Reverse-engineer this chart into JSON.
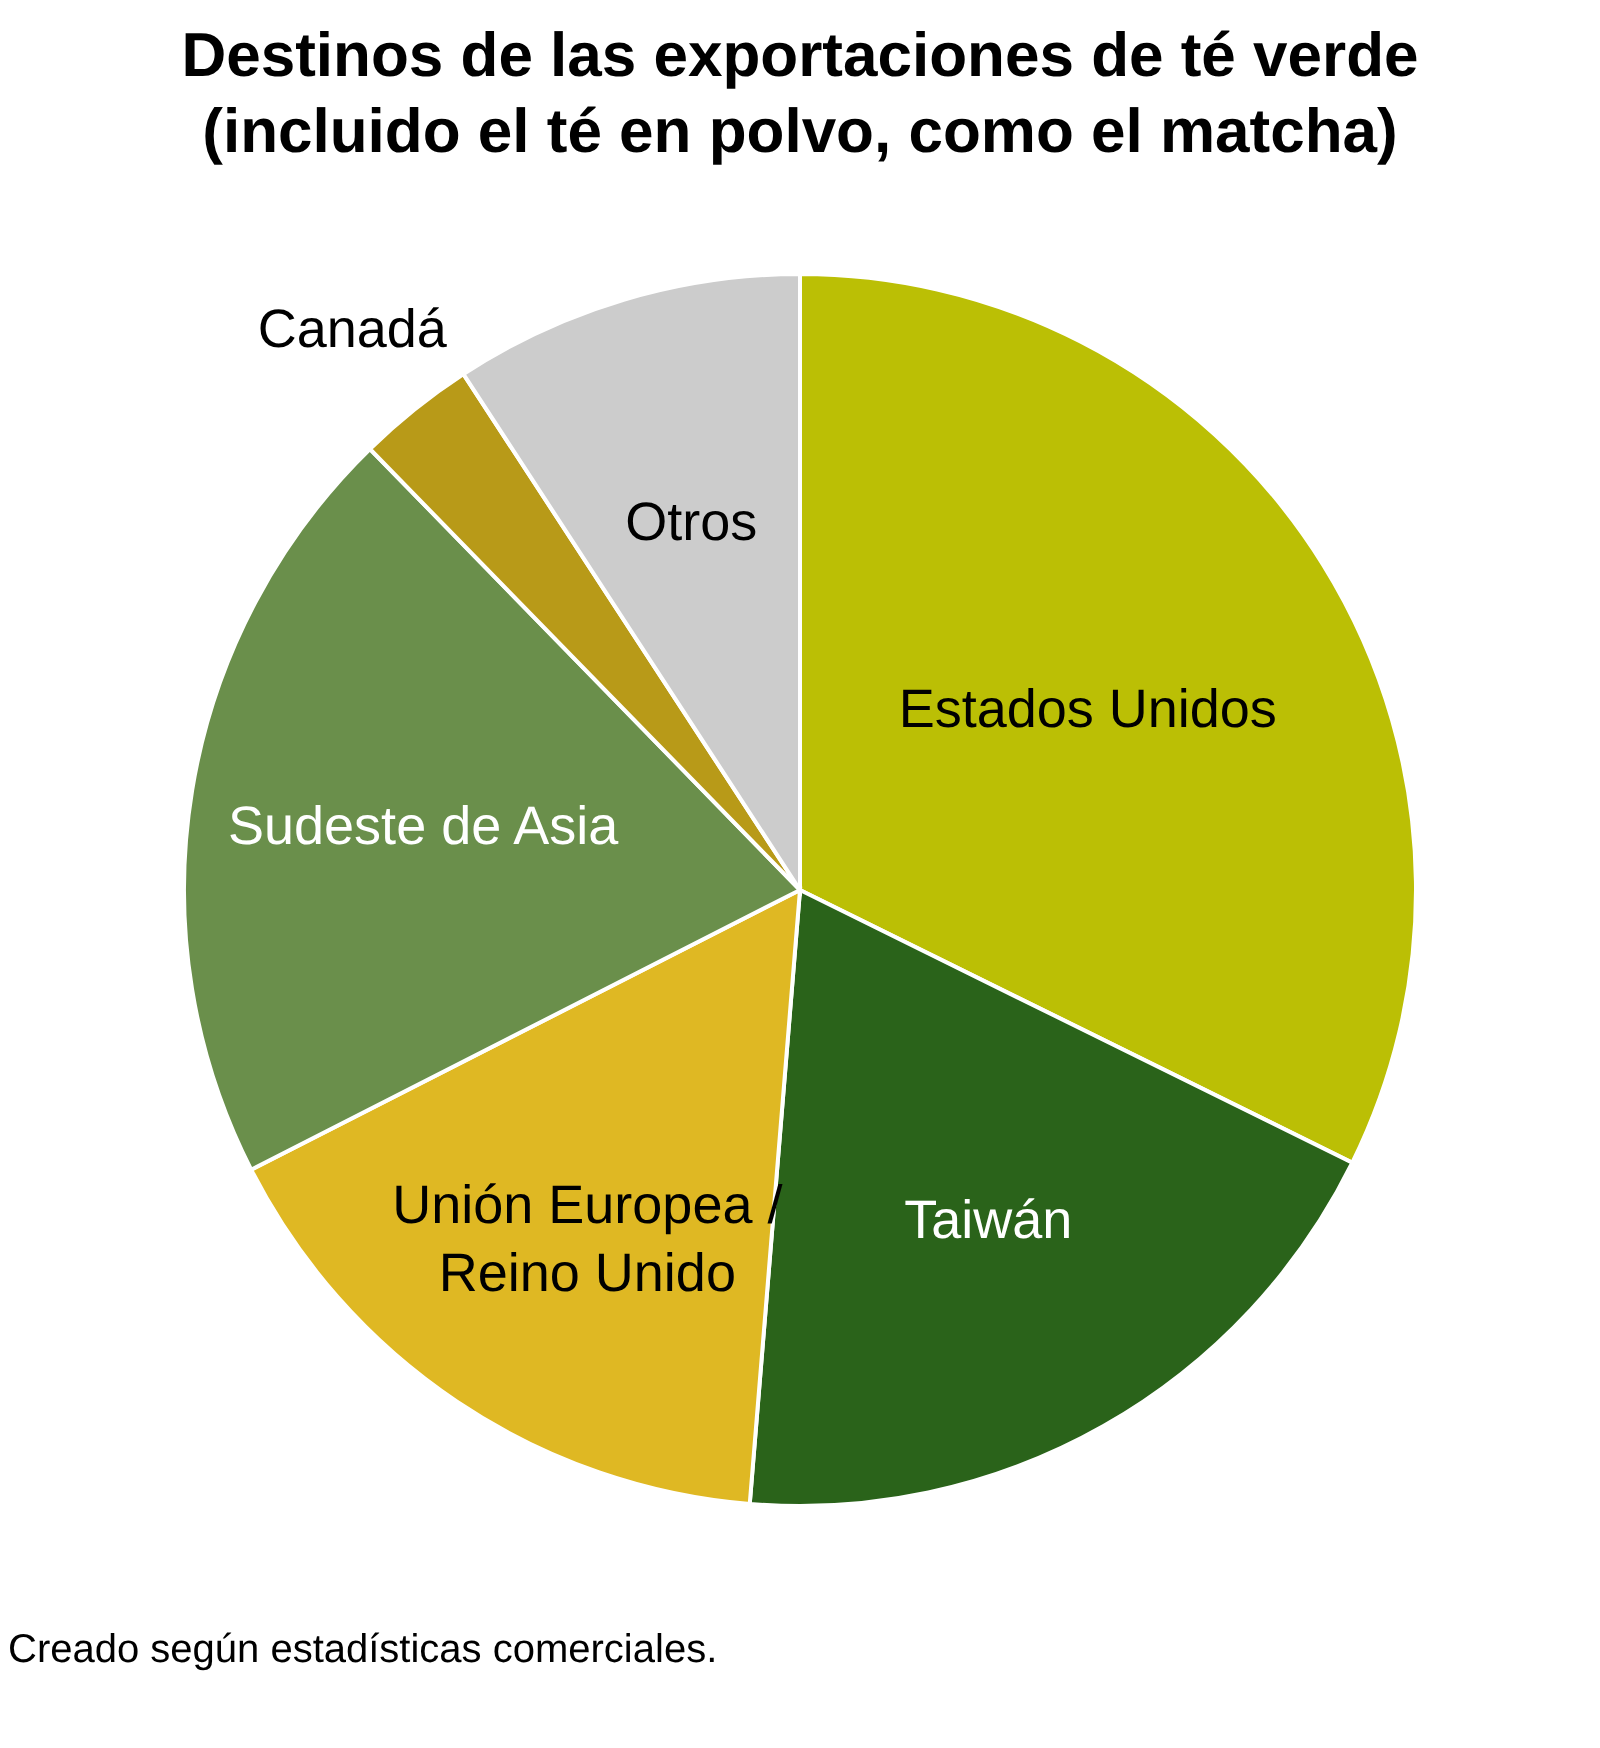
{
  "chart_data": {
    "type": "pie",
    "title": "Destinos de las exportaciones de té verde (incluido el té en polvo, como el matcha)",
    "categories": [
      "Estados Unidos",
      "Taiwán",
      "Unión Europea / Reino Unido",
      "Sudeste de Asia",
      "Canadá",
      "Otros"
    ],
    "values": [
      32.3,
      19.0,
      16.2,
      20.2,
      3.1,
      9.2
    ],
    "colors": [
      "#bbbf05",
      "#2a631a",
      "#dfb823",
      "#6a8f4b",
      "#b89a18",
      "#cccccc"
    ],
    "annotations": [
      "Creado según estadísticas comerciales."
    ]
  }
}
